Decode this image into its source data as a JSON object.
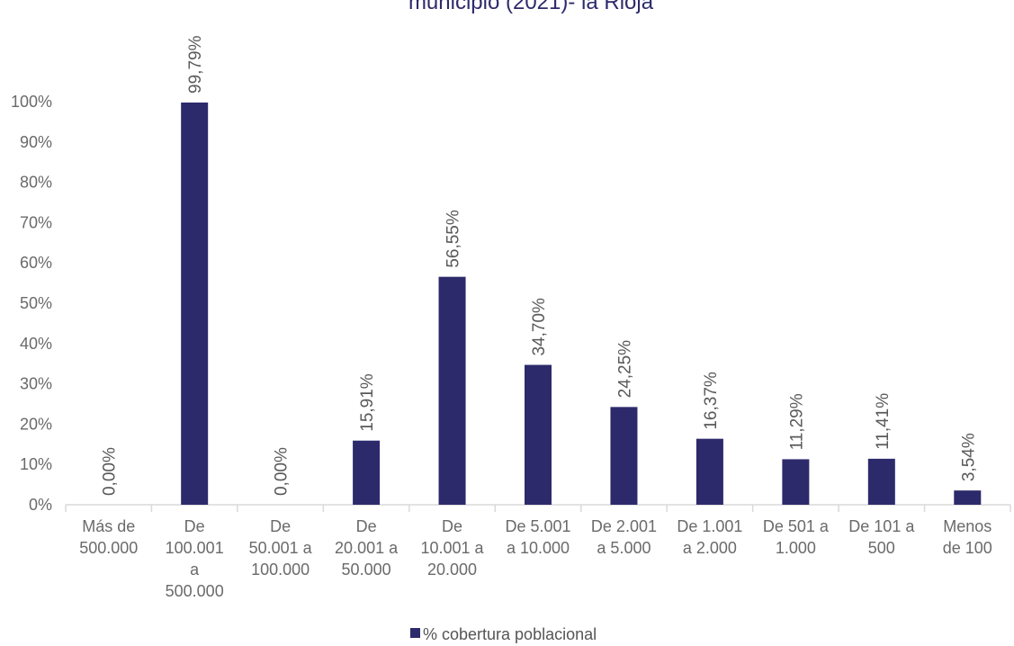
{
  "chart_data": {
    "type": "bar",
    "title": "municipio (2021)- la Rioja",
    "categories": [
      [
        "Más de",
        "500.000"
      ],
      [
        "De",
        "100.001",
        "a",
        "500.000"
      ],
      [
        "De",
        "50.001 a",
        "100.000"
      ],
      [
        "De",
        "20.001 a",
        "50.000"
      ],
      [
        "De",
        "10.001 a",
        "20.000"
      ],
      [
        "De 5.001",
        "a 10.000"
      ],
      [
        "De 2.001",
        "a 5.000"
      ],
      [
        "De 1.001",
        "a 2.000"
      ],
      [
        "De 501 a",
        "1.000"
      ],
      [
        "De 101 a",
        "500"
      ],
      [
        "Menos",
        "de 100"
      ]
    ],
    "series": [
      {
        "name": "% cobertura poblacional",
        "values": [
          0.0,
          99.79,
          0.0,
          15.91,
          56.55,
          34.7,
          24.25,
          16.37,
          11.29,
          11.41,
          3.54
        ],
        "labels": [
          "0,00%",
          "99,79%",
          "0,00%",
          "15,91%",
          "56,55%",
          "34,70%",
          "24,25%",
          "16,37%",
          "11,29%",
          "11,41%",
          "3,54%"
        ]
      }
    ],
    "ylim": [
      0,
      100
    ],
    "yticks": [
      0,
      10,
      20,
      30,
      40,
      50,
      60,
      70,
      80,
      90,
      100
    ],
    "ytick_labels": [
      "0%",
      "10%",
      "20%",
      "30%",
      "40%",
      "50%",
      "60%",
      "70%",
      "80%",
      "90%",
      "100%"
    ],
    "xlabel": "",
    "ylabel": "",
    "grid": false,
    "legend": "bottom-center",
    "colors": {
      "bar": "#2d2a6b",
      "axis": "#d9d9d9",
      "title": "#2d2a6b"
    }
  }
}
